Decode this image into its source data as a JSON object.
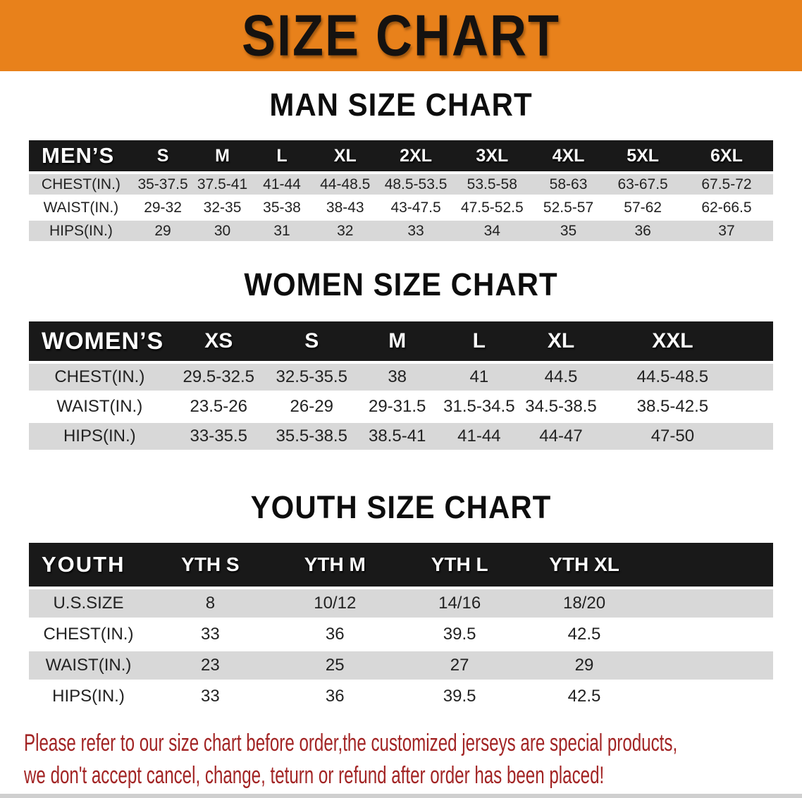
{
  "banner": {
    "title": "SIZE CHART"
  },
  "colors": {
    "banner_bg": "#e8811b",
    "banner_text": "#151210",
    "header_bar": "#191919",
    "row_stripe": "#d8d8d8",
    "note_red": "#a22424",
    "strip_gray": "#cfcfcf"
  },
  "sections": [
    {
      "heading": "MAN SIZE CHART",
      "table": {
        "label_header": "MEN’S",
        "size_headers": [
          "S",
          "M",
          "L",
          "XL",
          "2XL",
          "3XL",
          "4XL",
          "5XL",
          "6XL"
        ],
        "rows": [
          {
            "label": "CHEST(IN.)",
            "values": [
              "35-37.5",
              "37.5-41",
              "41-44",
              "44-48.5",
              "48.5-53.5",
              "53.5-58",
              "58-63",
              "63-67.5",
              "67.5-72"
            ]
          },
          {
            "label": "WAIST(IN.)",
            "values": [
              "29-32",
              "32-35",
              "35-38",
              "38-43",
              "43-47.5",
              "47.5-52.5",
              "52.5-57",
              "57-62",
              "62-66.5"
            ]
          },
          {
            "label": "HIPS(IN.)",
            "values": [
              "29",
              "30",
              "31",
              "32",
              "33",
              "34",
              "35",
              "36",
              "37"
            ]
          }
        ]
      }
    },
    {
      "heading": "WOMEN SIZE CHART",
      "table": {
        "label_header": "WOMEN’S",
        "size_headers": [
          "XS",
          "S",
          "M",
          "L",
          "XL",
          "XXL"
        ],
        "rows": [
          {
            "label": "CHEST(IN.)",
            "values": [
              "29.5-32.5",
              "32.5-35.5",
              "38",
              "41",
              "44.5",
              "44.5-48.5"
            ]
          },
          {
            "label": "WAIST(IN.)",
            "values": [
              "23.5-26",
              "26-29",
              "29-31.5",
              "31.5-34.5",
              "34.5-38.5",
              "38.5-42.5"
            ]
          },
          {
            "label": "HIPS(IN.)",
            "values": [
              "33-35.5",
              "35.5-38.5",
              "38.5-41",
              "41-44",
              "44-47",
              "47-50"
            ]
          }
        ]
      }
    },
    {
      "heading": "YOUTH SIZE CHART",
      "table": {
        "label_header": "YOUTH",
        "size_headers": [
          "YTH S",
          "YTH M",
          "YTH L",
          "YTH XL"
        ],
        "rows": [
          {
            "label": "U.S.SIZE",
            "values": [
              "8",
              "10/12",
              "14/16",
              "18/20"
            ]
          },
          {
            "label": "CHEST(IN.)",
            "values": [
              "33",
              "36",
              "39.5",
              "42.5"
            ]
          },
          {
            "label": "WAIST(IN.)",
            "values": [
              "23",
              "25",
              "27",
              "29"
            ]
          },
          {
            "label": "HIPS(IN.)",
            "values": [
              "33",
              "36",
              "39.5",
              "42.5"
            ]
          }
        ]
      }
    }
  ],
  "note": {
    "lines": [
      "Please refer to our size chart before order,the customized jerseys are special products,",
      "we don't accept cancel, change, teturn or refund after order has been placed!"
    ]
  }
}
